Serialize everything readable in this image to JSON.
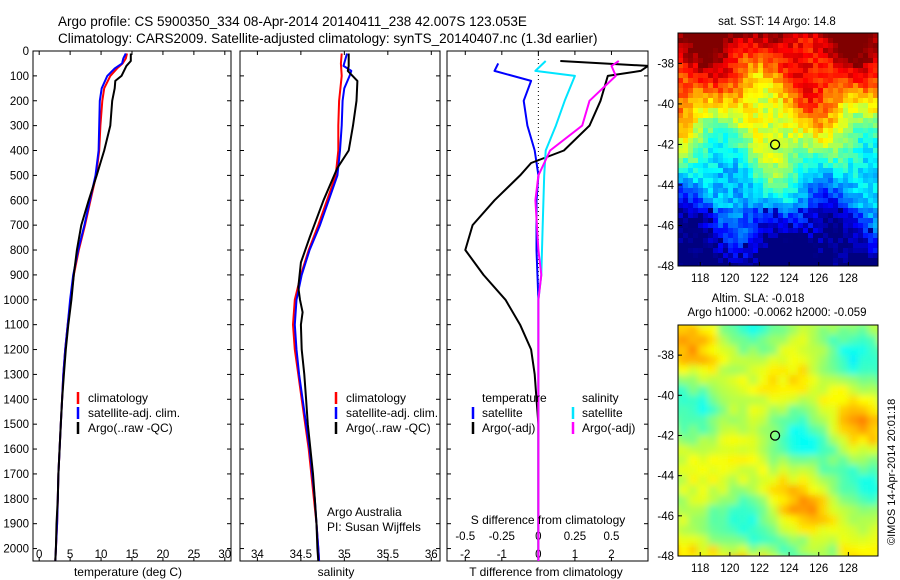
{
  "header": {
    "line1": "Argo profile: CS 5900350_334 08-Apr-2014 20140411_238 42.007S 123.053E",
    "line2": "Climatology: CARS2009. Satellite-adjusted climatology: synTS_20140407.nc (1.3d earlier)"
  },
  "credit": "©IMOS 14-Apr-2014 20:01:18",
  "colors": {
    "climatology": "#ff0000",
    "satellite_adj": "#0000ff",
    "argo": "#000000",
    "satellite_s": "#00e5ff",
    "argo_adj_s": "#ff00ff"
  },
  "chart_data": [
    {
      "id": "temperature",
      "type": "line",
      "xlabel": "temperature (deg C)",
      "ylabel": "",
      "xlim": [
        -1,
        31
      ],
      "ylim": [
        2050,
        0
      ],
      "x_ticks": [
        0,
        5,
        10,
        15,
        20,
        25,
        30
      ],
      "y_ticks": [
        0,
        100,
        200,
        300,
        400,
        500,
        600,
        700,
        800,
        900,
        1000,
        1100,
        1200,
        1300,
        1400,
        1500,
        1600,
        1700,
        1800,
        1900,
        2000
      ],
      "legend": [
        "climatology",
        "satellite-adj. clim.",
        "Argo(..raw -QC)"
      ],
      "series": [
        {
          "name": "climatology",
          "color": "#ff0000",
          "points": [
            [
              14.2,
              10
            ],
            [
              14,
              30
            ],
            [
              13.5,
              50
            ],
            [
              12.6,
              70
            ],
            [
              11.5,
              100
            ],
            [
              10.5,
              150
            ],
            [
              10.2,
              200
            ],
            [
              9.9,
              300
            ],
            [
              9.7,
              400
            ],
            [
              9.2,
              500
            ],
            [
              8.3,
              600
            ],
            [
              7.4,
              700
            ],
            [
              6.4,
              800
            ],
            [
              5.6,
              900
            ],
            [
              5.1,
              1000
            ],
            [
              4.6,
              1100
            ],
            [
              4.2,
              1200
            ],
            [
              3.9,
              1300
            ],
            [
              3.7,
              1400
            ],
            [
              3.5,
              1500
            ],
            [
              3.3,
              1600
            ],
            [
              3.1,
              1700
            ],
            [
              3,
              1800
            ],
            [
              2.9,
              1900
            ],
            [
              2.7,
              2000
            ],
            [
              2.6,
              2050
            ]
          ]
        },
        {
          "name": "satellite-adj. clim.",
          "color": "#0000ff",
          "points": [
            [
              14,
              10
            ],
            [
              13.6,
              30
            ],
            [
              13.4,
              50
            ],
            [
              12.2,
              70
            ],
            [
              11,
              100
            ],
            [
              10.1,
              150
            ],
            [
              9.8,
              200
            ],
            [
              9.7,
              300
            ],
            [
              9.6,
              400
            ],
            [
              9.1,
              500
            ],
            [
              8.2,
              600
            ],
            [
              7.3,
              700
            ],
            [
              6.3,
              800
            ],
            [
              5.5,
              900
            ],
            [
              5,
              1000
            ],
            [
              4.6,
              1100
            ],
            [
              4.2,
              1200
            ],
            [
              3.9,
              1300
            ],
            [
              3.7,
              1400
            ],
            [
              3.5,
              1500
            ],
            [
              3.3,
              1600
            ],
            [
              3.1,
              1700
            ],
            [
              3,
              1800
            ],
            [
              2.9,
              1900
            ],
            [
              2.7,
              2000
            ],
            [
              2.6,
              2050
            ]
          ]
        },
        {
          "name": "Argo(..raw -QC)",
          "color": "#000000",
          "points": [
            [
              14.8,
              10
            ],
            [
              14.8,
              30
            ],
            [
              14.8,
              40
            ],
            [
              14.1,
              60
            ],
            [
              13.3,
              100
            ],
            [
              12.3,
              120
            ],
            [
              12.2,
              150
            ],
            [
              11.8,
              200
            ],
            [
              11.5,
              300
            ],
            [
              10.5,
              400
            ],
            [
              9.9,
              450
            ],
            [
              9.3,
              500
            ],
            [
              8,
              600
            ],
            [
              6.8,
              700
            ],
            [
              6.1,
              800
            ],
            [
              5.6,
              900
            ],
            [
              5.2,
              1000
            ],
            [
              4.7,
              1100
            ],
            [
              4.3,
              1200
            ],
            [
              4,
              1300
            ],
            [
              3.7,
              1400
            ],
            [
              3.5,
              1500
            ],
            [
              3.3,
              1600
            ],
            [
              3.1,
              1700
            ],
            [
              3,
              1800
            ],
            [
              2.8,
              1900
            ],
            [
              2.7,
              2000
            ],
            [
              2.6,
              2050
            ]
          ]
        }
      ]
    },
    {
      "id": "salinity",
      "type": "line",
      "xlabel": "salinity",
      "ylabel": "",
      "xlim": [
        33.8,
        36.1
      ],
      "ylim": [
        2050,
        0
      ],
      "x_ticks": [
        34,
        34.5,
        35,
        35.5,
        36
      ],
      "legend": [
        "climatology",
        "satellite-adj. clim.",
        "Argo(..raw -QC)"
      ],
      "annotation": [
        "Argo Australia",
        "PI: Susan Wijffels"
      ],
      "series": [
        {
          "name": "climatology",
          "color": "#ff0000",
          "points": [
            [
              34.97,
              10
            ],
            [
              34.96,
              50
            ],
            [
              34.97,
              100
            ],
            [
              34.94,
              200
            ],
            [
              34.93,
              300
            ],
            [
              34.93,
              400
            ],
            [
              34.9,
              500
            ],
            [
              34.8,
              600
            ],
            [
              34.7,
              700
            ],
            [
              34.59,
              800
            ],
            [
              34.5,
              900
            ],
            [
              34.43,
              1000
            ],
            [
              34.41,
              1100
            ],
            [
              34.43,
              1200
            ],
            [
              34.47,
              1300
            ],
            [
              34.51,
              1400
            ],
            [
              34.55,
              1500
            ],
            [
              34.59,
              1600
            ],
            [
              34.62,
              1700
            ],
            [
              34.65,
              1800
            ],
            [
              34.68,
              1900
            ],
            [
              34.7,
              2000
            ],
            [
              34.71,
              2050
            ]
          ]
        },
        {
          "name": "satellite-adj. clim.",
          "color": "#0000ff",
          "points": [
            [
              35.03,
              10
            ],
            [
              34.99,
              60
            ],
            [
              35.08,
              80
            ],
            [
              35.06,
              100
            ],
            [
              35,
              150
            ],
            [
              34.98,
              200
            ],
            [
              34.97,
              300
            ],
            [
              34.95,
              400
            ],
            [
              34.92,
              500
            ],
            [
              34.82,
              600
            ],
            [
              34.72,
              700
            ],
            [
              34.6,
              800
            ],
            [
              34.51,
              900
            ],
            [
              34.45,
              1000
            ],
            [
              34.43,
              1100
            ],
            [
              34.45,
              1200
            ],
            [
              34.48,
              1300
            ],
            [
              34.52,
              1400
            ],
            [
              34.56,
              1500
            ],
            [
              34.6,
              1600
            ],
            [
              34.63,
              1700
            ],
            [
              34.66,
              1800
            ],
            [
              34.68,
              1900
            ],
            [
              34.7,
              2000
            ],
            [
              34.71,
              2050
            ]
          ]
        },
        {
          "name": "Argo(..raw -QC)",
          "color": "#000000",
          "points": [
            [
              35.05,
              10
            ],
            [
              35.05,
              60
            ],
            [
              35.04,
              80
            ],
            [
              35.15,
              120
            ],
            [
              35.14,
              200
            ],
            [
              35.1,
              300
            ],
            [
              35.05,
              400
            ],
            [
              34.92,
              470
            ],
            [
              34.76,
              600
            ],
            [
              34.6,
              750
            ],
            [
              34.5,
              850
            ],
            [
              34.47,
              950
            ],
            [
              34.49,
              1000
            ],
            [
              34.52,
              1050
            ],
            [
              34.5,
              1100
            ],
            [
              34.51,
              1200
            ],
            [
              34.54,
              1300
            ],
            [
              34.56,
              1400
            ],
            [
              34.58,
              1500
            ],
            [
              34.61,
              1600
            ],
            [
              34.64,
              1700
            ],
            [
              34.66,
              1800
            ],
            [
              34.68,
              1900
            ],
            [
              34.69,
              2000
            ],
            [
              34.7,
              2050
            ]
          ]
        }
      ]
    },
    {
      "id": "difference",
      "type": "line",
      "xlabel": "T difference from climatology",
      "top_label": "S difference from climatology",
      "xlim": [
        -2.5,
        3
      ],
      "ylim": [
        2050,
        0
      ],
      "x_ticks": [
        -2,
        -1,
        0,
        1,
        2
      ],
      "s_ticks": [
        "-0.5",
        "-0.25",
        "0",
        "0.25",
        "0.5"
      ],
      "legend_headers": [
        "temperature",
        "salinity"
      ],
      "legend": [
        "satellite",
        "Argo(-adj)",
        "satellite",
        "Argo(-adj)"
      ],
      "series": [
        {
          "name": "temperature satellite",
          "color": "#0000ff",
          "points": [
            [
              -1.1,
              50
            ],
            [
              -1.2,
              80
            ],
            [
              -0.2,
              120
            ],
            [
              -0.4,
              200
            ],
            [
              -0.3,
              300
            ],
            [
              -0.1,
              400
            ],
            [
              0,
              500
            ],
            [
              -0.05,
              600
            ],
            [
              -0.05,
              800
            ],
            [
              0,
              1000
            ],
            [
              0,
              1500
            ],
            [
              0,
              2050
            ]
          ]
        },
        {
          "name": "temperature Argo(-adj)",
          "color": "#000000",
          "points": [
            [
              0.6,
              40
            ],
            [
              3,
              60
            ],
            [
              2.8,
              80
            ],
            [
              1.9,
              100
            ],
            [
              1.7,
              200
            ],
            [
              1.4,
              300
            ],
            [
              0.7,
              400
            ],
            [
              -0.2,
              450
            ],
            [
              -0.5,
              500
            ],
            [
              -1.2,
              600
            ],
            [
              -1.8,
              700
            ],
            [
              -2,
              800
            ],
            [
              -1.5,
              900
            ],
            [
              -0.9,
              1000
            ],
            [
              -0.5,
              1100
            ],
            [
              -0.2,
              1200
            ],
            [
              -0.1,
              1300
            ],
            [
              -0.05,
              1400
            ],
            [
              0,
              1500
            ],
            [
              0,
              1700
            ],
            [
              0,
              2050
            ]
          ]
        },
        {
          "name": "salinity satellite",
          "color": "#00e5ff",
          "points": [
            [
              0.05,
              40
            ],
            [
              -0.02,
              80
            ],
            [
              0.25,
              100
            ],
            [
              0.18,
              200
            ],
            [
              0.12,
              300
            ],
            [
              0.05,
              400
            ],
            [
              0.04,
              500
            ],
            [
              0.03,
              700
            ],
            [
              0.02,
              900
            ],
            [
              0,
              1000
            ],
            [
              0,
              2050
            ]
          ]
        },
        {
          "name": "salinity Argo(-adj)",
          "color": "#ff00ff",
          "points": [
            [
              0.55,
              40
            ],
            [
              0.5,
              60
            ],
            [
              0.53,
              100
            ],
            [
              0.35,
              200
            ],
            [
              0.3,
              300
            ],
            [
              0.08,
              400
            ],
            [
              0,
              500
            ],
            [
              -0.02,
              600
            ],
            [
              0,
              800
            ],
            [
              0.02,
              900
            ],
            [
              0,
              1000
            ],
            [
              0,
              2050
            ]
          ]
        }
      ]
    },
    {
      "id": "sst_map",
      "type": "heatmap",
      "title": "sat. SST: 14 Argo: 14.8",
      "x_ticks": [
        "118",
        "120",
        "122",
        "124",
        "126",
        "128"
      ],
      "y_ticks": [
        "-38",
        "-40",
        "-42",
        "-44",
        "-46",
        "-48"
      ],
      "xlim": [
        116.5,
        130
      ],
      "ylim": [
        -48,
        -36.5
      ],
      "marker": {
        "lon": 123.053,
        "lat": -42.007
      }
    },
    {
      "id": "sla_map",
      "type": "heatmap",
      "title_line1": "Altim. SLA: -0.018",
      "title_line2": "Argo h1000: -0.0062 h2000: -0.059",
      "x_ticks": [
        "118",
        "120",
        "122",
        "124",
        "126",
        "128"
      ],
      "y_ticks": [
        "-38",
        "-40",
        "-42",
        "-44",
        "-46",
        "-48"
      ],
      "xlim": [
        116.5,
        130
      ],
      "ylim": [
        -48,
        -36.5
      ],
      "marker": {
        "lon": 123.053,
        "lat": -42.007
      }
    }
  ]
}
